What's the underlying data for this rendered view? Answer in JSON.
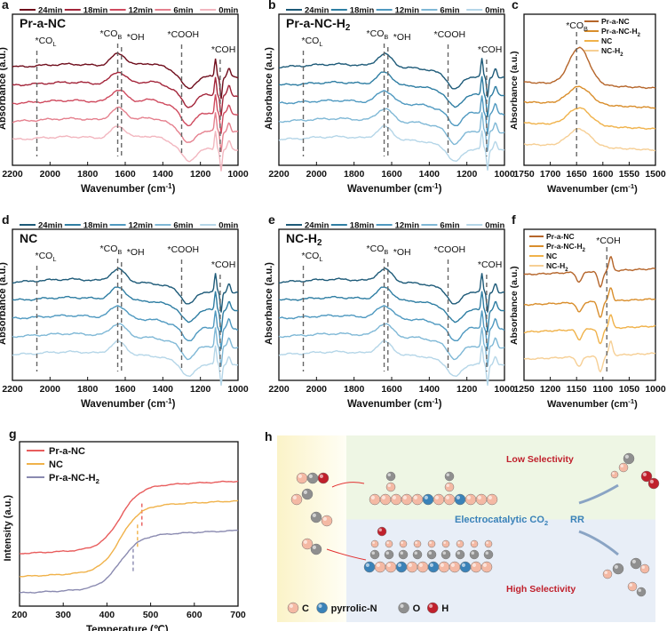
{
  "panel_a": {
    "letter": "a",
    "sample": "Pr-a-NC",
    "legend": [
      "24min",
      "18min",
      "12min",
      "6min",
      "0min"
    ],
    "colors": [
      "#6f0d1c",
      "#a3253a",
      "#cf4a5e",
      "#e5808e",
      "#f2b6bf"
    ],
    "peaks": [
      {
        "label": "*CO",
        "sub": "L"
      },
      {
        "label": "*CO",
        "sub": "B"
      },
      {
        "label": "*OH",
        "sub": ""
      },
      {
        "label": "*COOH",
        "sub": ""
      },
      {
        "label": "*COH",
        "sub": ""
      }
    ],
    "xlabel": "Wavenumber (cm",
    "xlabel_sup": "-1",
    "xlabel_end": ")",
    "ylabel": "Absorbance (a.u.)",
    "xticks": [
      "2200",
      "2000",
      "1800",
      "1600",
      "1400",
      "1200",
      "1000"
    ]
  },
  "panel_b": {
    "letter": "b",
    "sample": "Pr-a-NC-H",
    "sample_sub": "2",
    "legend": [
      "24min",
      "18min",
      "12min",
      "6min",
      "0min"
    ],
    "colors": [
      "#1d5a78",
      "#2f7ea3",
      "#4f99c0",
      "#7fb8d6",
      "#b5d6e8"
    ],
    "peaks": [
      {
        "label": "*CO",
        "sub": "L"
      },
      {
        "label": "*CO",
        "sub": "B"
      },
      {
        "label": "*OH",
        "sub": ""
      },
      {
        "label": "*COOH",
        "sub": ""
      },
      {
        "label": "*COH",
        "sub": ""
      }
    ],
    "xlabel": "Wavenumber (cm",
    "xlabel_sup": "-1",
    "xlabel_end": ")",
    "ylabel": "Absorbance (a.u.)",
    "xticks": [
      "2200",
      "2000",
      "1800",
      "1600",
      "1400",
      "1200",
      "1000"
    ]
  },
  "panel_c": {
    "letter": "c",
    "peak": {
      "label": "*CO",
      "sub": "B"
    },
    "legend": [
      "Pr-a-NC",
      "Pr-a-NC-H",
      "NC",
      "NC-H"
    ],
    "legend_subs": [
      "",
      "2",
      "",
      "2"
    ],
    "colors": [
      "#b5652a",
      "#d98e2c",
      "#f0b24a",
      "#f6cf95"
    ],
    "xlabel": "Wavenumber (cm",
    "xlabel_sup": "-1",
    "xlabel_end": ")",
    "ylabel": "Absorbance (a.u.)",
    "xticks": [
      "1750",
      "1700",
      "1650",
      "1600",
      "1550",
      "1500"
    ]
  },
  "panel_d": {
    "letter": "d",
    "sample": "NC",
    "legend": [
      "24min",
      "18min",
      "12min",
      "6min",
      "0min"
    ],
    "colors": [
      "#1d5a78",
      "#2f7ea3",
      "#4f99c0",
      "#7fb8d6",
      "#b5d6e8"
    ],
    "peaks": [
      {
        "label": "*CO",
        "sub": "L"
      },
      {
        "label": "*CO",
        "sub": "B"
      },
      {
        "label": "*OH",
        "sub": ""
      },
      {
        "label": "*COOH",
        "sub": ""
      },
      {
        "label": "*COH",
        "sub": ""
      }
    ],
    "xlabel": "Wavenumber (cm",
    "xlabel_sup": "-1",
    "xlabel_end": ")",
    "ylabel": "Absorbance (a.u.)",
    "xticks": [
      "2200",
      "2000",
      "1800",
      "1600",
      "1400",
      "1200",
      "1000"
    ]
  },
  "panel_e": {
    "letter": "e",
    "sample": "NC-H",
    "sample_sub": "2",
    "legend": [
      "24min",
      "18min",
      "12min",
      "6min",
      "0min"
    ],
    "colors": [
      "#1d5a78",
      "#2f7ea3",
      "#4f99c0",
      "#7fb8d6",
      "#b5d6e8"
    ],
    "peaks": [
      {
        "label": "*CO",
        "sub": "L"
      },
      {
        "label": "*CO",
        "sub": "B"
      },
      {
        "label": "*OH",
        "sub": ""
      },
      {
        "label": "*COOH",
        "sub": ""
      },
      {
        "label": "*COH",
        "sub": ""
      }
    ],
    "xlabel": "Wavenumber (cm",
    "xlabel_sup": "-1",
    "xlabel_end": ")",
    "ylabel": "Absorbance (a.u.)",
    "xticks": [
      "2200",
      "2000",
      "1800",
      "1600",
      "1400",
      "1200",
      "1000"
    ]
  },
  "panel_f": {
    "letter": "f",
    "peak": {
      "label": "*COH",
      "sub": ""
    },
    "legend": [
      "Pr-a-NC",
      "Pr-a-NC-H",
      "NC",
      "NC-H"
    ],
    "legend_subs": [
      "",
      "2",
      "",
      "2"
    ],
    "colors": [
      "#b5652a",
      "#d98e2c",
      "#f0b24a",
      "#f6cf95"
    ],
    "xlabel": "Wavenumber (cm",
    "xlabel_sup": "-1",
    "xlabel_end": ")",
    "ylabel": "Absorbance (a.u.)",
    "xticks": [
      "1250",
      "1200",
      "1150",
      "1100",
      "1050",
      "1000"
    ]
  },
  "panel_g": {
    "letter": "g",
    "legend": [
      "Pr-a-NC",
      "NC",
      "Pr-a-NC-H"
    ],
    "legend_subs": [
      "",
      "",
      "2"
    ],
    "colors": [
      "#e85c5c",
      "#f0b24a",
      "#8a8ab0"
    ],
    "xlabel": "Temperature (℃)",
    "ylabel": "Intensity (a.u.)",
    "xticks": [
      "200",
      "300",
      "400",
      "500",
      "600",
      "700"
    ]
  },
  "panel_h": {
    "letter": "h",
    "low": "Low Selectivity",
    "high": "High Selectivity",
    "center_prefix": "Electrocatalytic CO",
    "center_sub": "2",
    "center_suffix": "RR",
    "atom_legend": [
      "C",
      "pyrrolic-N",
      "O",
      "H"
    ],
    "atom_colors": [
      "#f4b9a4",
      "#3a82b8",
      "#8f8f8f",
      "#c0202c"
    ],
    "low_color": "#c0202c",
    "center_color": "#3a82b8"
  },
  "chart_data": [
    {
      "panel": "a",
      "type": "line",
      "title": "Pr-a-NC",
      "xlabel": "Wavenumber (cm-1)",
      "ylabel": "Absorbance (a.u.)",
      "xlim": [
        2200,
        1000
      ],
      "series": [
        "24min",
        "18min",
        "12min",
        "6min",
        "0min"
      ],
      "peak_positions": {
        "*COL": 2070,
        "*COB": 1640,
        "*OH": 1620,
        "*COOH": 1300,
        "*COH": 1095
      }
    },
    {
      "panel": "b",
      "type": "line",
      "title": "Pr-a-NC-H2",
      "xlabel": "Wavenumber (cm-1)",
      "ylabel": "Absorbance (a.u.)",
      "xlim": [
        2200,
        1000
      ],
      "series": [
        "24min",
        "18min",
        "12min",
        "6min",
        "0min"
      ],
      "peak_positions": {
        "*COL": 2070,
        "*COB": 1640,
        "*OH": 1620,
        "*COOH": 1300,
        "*COH": 1095
      }
    },
    {
      "panel": "c",
      "type": "line",
      "xlabel": "Wavenumber (cm-1)",
      "ylabel": "Absorbance (a.u.)",
      "xlim": [
        1750,
        1500
      ],
      "series": [
        "Pr-a-NC",
        "Pr-a-NC-H2",
        "NC",
        "NC-H2"
      ],
      "peak_positions": {
        "*COB": 1650
      }
    },
    {
      "panel": "d",
      "type": "line",
      "title": "NC",
      "xlabel": "Wavenumber (cm-1)",
      "ylabel": "Absorbance (a.u.)",
      "xlim": [
        2200,
        1000
      ],
      "series": [
        "24min",
        "18min",
        "12min",
        "6min",
        "0min"
      ],
      "peak_positions": {
        "*COL": 2070,
        "*COB": 1640,
        "*OH": 1620,
        "*COOH": 1300,
        "*COH": 1095
      }
    },
    {
      "panel": "e",
      "type": "line",
      "title": "NC-H2",
      "xlabel": "Wavenumber (cm-1)",
      "ylabel": "Absorbance (a.u.)",
      "xlim": [
        2200,
        1000
      ],
      "series": [
        "24min",
        "18min",
        "12min",
        "6min",
        "0min"
      ],
      "peak_positions": {
        "*COL": 2070,
        "*COB": 1640,
        "*OH": 1620,
        "*COOH": 1300,
        "*COH": 1095
      }
    },
    {
      "panel": "f",
      "type": "line",
      "xlabel": "Wavenumber (cm-1)",
      "ylabel": "Absorbance (a.u.)",
      "xlim": [
        1250,
        1000
      ],
      "series": [
        "Pr-a-NC",
        "Pr-a-NC-H2",
        "NC",
        "NC-H2"
      ],
      "peak_positions": {
        "*COH": 1090
      }
    },
    {
      "panel": "g",
      "type": "line",
      "xlabel": "Temperature (℃)",
      "ylabel": "Intensity (a.u.)",
      "xlim": [
        200,
        700
      ],
      "series": [
        "Pr-a-NC",
        "NC",
        "Pr-a-NC-H2"
      ],
      "markers": [
        480,
        470,
        460
      ]
    }
  ]
}
